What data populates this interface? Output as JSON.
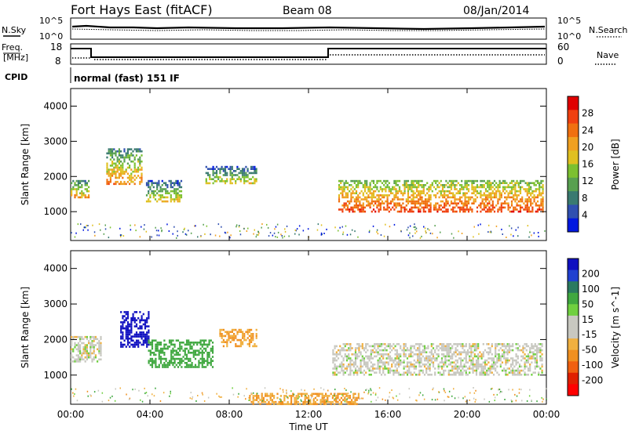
{
  "header": {
    "station": "Fort Hays East (fitACF)",
    "beam": "Beam 08",
    "date": "08/Jan/2014"
  },
  "status_panels": {
    "noise": {
      "left_label": "N.Sky",
      "right_label": "N.Search",
      "left_ticks": [
        "10^5",
        "10^0"
      ],
      "right_ticks": [
        "10^5",
        "10^0"
      ]
    },
    "freq": {
      "left_label_1": "Freq.",
      "left_label_2": "[MHz]",
      "right_label": "Nave",
      "left_ticks": [
        "18",
        "8"
      ],
      "right_ticks": [
        "60",
        "0"
      ]
    },
    "cpid": {
      "label": "CPID",
      "text": "normal (fast) 151 IF"
    }
  },
  "chart_data": [
    {
      "type": "heatmap",
      "title": "",
      "xlabel": "Time UT",
      "ylabel": "Slant Range [km]",
      "x_ticks": [
        "00:00",
        "04:00",
        "08:00",
        "12:00",
        "16:00",
        "20:00",
        "00:00"
      ],
      "y_ticks": [
        1000,
        2000,
        3000,
        4000
      ],
      "xlim_hours": [
        0,
        24
      ],
      "ylim_km": [
        180,
        4500
      ],
      "colorbar": {
        "label": "Power [dB]",
        "ticks": [
          4,
          8,
          12,
          16,
          20,
          24,
          28
        ],
        "colors": [
          "#0018e0",
          "#3050b0",
          "#3a7a70",
          "#58a050",
          "#7cc030",
          "#e0c020",
          "#f0a020",
          "#f07010",
          "#f04010",
          "#e00000"
        ]
      },
      "regions": [
        {
          "t0": 0.0,
          "t1": 0.9,
          "r0": 1400,
          "r1": 1900,
          "value": 12
        },
        {
          "t0": 1.8,
          "t1": 3.6,
          "r0": 1800,
          "r1": 2800,
          "value": 12
        },
        {
          "t0": 3.8,
          "t1": 5.6,
          "r0": 1300,
          "r1": 1900,
          "value": 8
        },
        {
          "t0": 6.8,
          "t1": 9.4,
          "r0": 1800,
          "r1": 2300,
          "value": 8
        },
        {
          "t0": 13.5,
          "t1": 23.8,
          "r0": 1000,
          "r1": 1900,
          "value": 16
        }
      ]
    },
    {
      "type": "heatmap",
      "title": "",
      "xlabel": "Time UT",
      "ylabel": "Slant Range [km]",
      "x_ticks": [
        "00:00",
        "04:00",
        "08:00",
        "12:00",
        "16:00",
        "20:00",
        "00:00"
      ],
      "y_ticks": [
        1000,
        2000,
        3000,
        4000
      ],
      "xlim_hours": [
        0,
        24
      ],
      "ylim_km": [
        180,
        4500
      ],
      "colorbar": {
        "label": "Velocity [m s^-1]",
        "ticks": [
          "200",
          "100",
          "50",
          "15",
          "-15",
          "-50",
          "-100",
          "-200"
        ],
        "colors": [
          "#1010c0",
          "#2040d0",
          "#2a7a60",
          "#40a840",
          "#70d040",
          "#c8c8c0",
          "#c8c8c0",
          "#f0b040",
          "#f09020",
          "#f06010",
          "#e02000",
          "#ff0000"
        ]
      },
      "regions": [
        {
          "t0": 0.0,
          "t1": 1.5,
          "r0": 1400,
          "r1": 2100,
          "value": 0
        },
        {
          "t0": 2.5,
          "t1": 3.9,
          "r0": 1800,
          "r1": 2800,
          "value": 200
        },
        {
          "t0": 3.9,
          "t1": 7.2,
          "r0": 1200,
          "r1": 2000,
          "value": 50
        },
        {
          "t0": 7.5,
          "t1": 9.4,
          "r0": 1800,
          "r1": 2300,
          "value": -50
        },
        {
          "t0": 13.2,
          "t1": 23.8,
          "r0": 1000,
          "r1": 1900,
          "value": 0
        },
        {
          "t0": 9.0,
          "t1": 14.5,
          "r0": 180,
          "r1": 500,
          "value": -50
        }
      ]
    }
  ]
}
